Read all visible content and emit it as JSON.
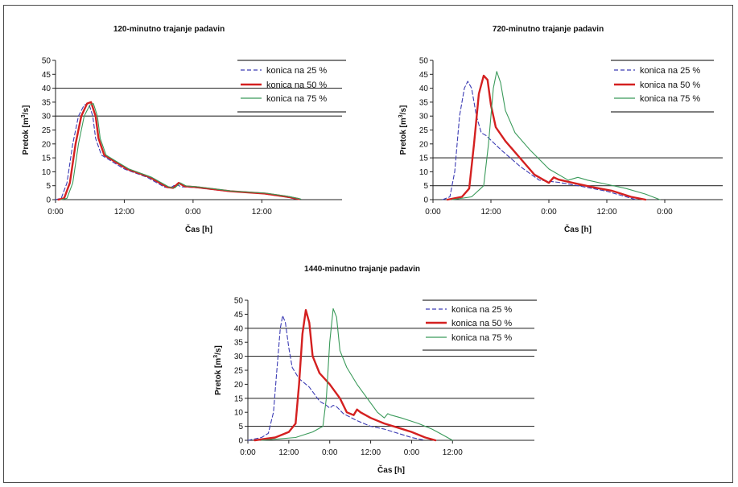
{
  "chart_data": [
    {
      "type": "line",
      "title": "120-minutno trajanje padavin",
      "xlabel": "Čas [h]",
      "ylabel": "Pretok [m³/s]",
      "ylabel_main": "Pretok [m",
      "ylabel_sup": "3",
      "ylabel_end": "/s]",
      "x_unit": "h",
      "xlim": [
        0,
        50
      ],
      "ylim": [
        0,
        50
      ],
      "yticks": [
        0,
        5,
        10,
        15,
        20,
        25,
        30,
        35,
        40,
        45,
        50
      ],
      "xticks": [
        {
          "x": 0,
          "label": "0:00"
        },
        {
          "x": 12,
          "label": "12:00"
        },
        {
          "x": 24,
          "label": "0:00"
        },
        {
          "x": 36,
          "label": "12:00"
        }
      ],
      "gridlines_y": [
        30,
        40
      ],
      "legend": "top-right",
      "series": [
        {
          "name": "konica na 25 %",
          "color": "#3c3cb4",
          "style": "dashed",
          "points": [
            [
              0,
              0
            ],
            [
              1,
              0.5
            ],
            [
              2,
              6
            ],
            [
              3,
              20
            ],
            [
              4,
              30
            ],
            [
              5,
              34
            ],
            [
              5.8,
              34.5
            ],
            [
              6.5,
              30
            ],
            [
              7,
              22
            ],
            [
              8,
              16
            ],
            [
              10,
              13.5
            ],
            [
              12,
              11
            ],
            [
              16,
              8
            ],
            [
              19,
              4.5
            ],
            [
              20,
              4.2
            ],
            [
              21,
              5.5
            ],
            [
              22,
              4.6
            ],
            [
              24,
              4.4
            ],
            [
              30,
              3
            ],
            [
              36,
              2.2
            ],
            [
              40,
              1
            ],
            [
              42,
              0.2
            ]
          ]
        },
        {
          "name": "konica na 50 %",
          "color": "#d42020",
          "style": "solid",
          "points": [
            [
              0.5,
              0
            ],
            [
              1.5,
              0.5
            ],
            [
              2.5,
              6
            ],
            [
              3.5,
              20
            ],
            [
              4.5,
              30
            ],
            [
              5.5,
              34.5
            ],
            [
              6.2,
              35
            ],
            [
              7,
              30
            ],
            [
              7.5,
              22
            ],
            [
              8.5,
              16
            ],
            [
              10.5,
              13.5
            ],
            [
              12.5,
              11
            ],
            [
              16.5,
              8
            ],
            [
              19.5,
              4.5
            ],
            [
              20.5,
              4.2
            ],
            [
              21.5,
              6
            ],
            [
              22.5,
              4.8
            ],
            [
              24.5,
              4.5
            ],
            [
              30.5,
              3
            ],
            [
              36.5,
              2.2
            ],
            [
              40.5,
              1
            ],
            [
              42.5,
              0.2
            ]
          ]
        },
        {
          "name": "konica na 75 %",
          "color": "#3a9a5a",
          "style": "solid",
          "points": [
            [
              1,
              0
            ],
            [
              2,
              0.5
            ],
            [
              3,
              6
            ],
            [
              4,
              20
            ],
            [
              5,
              30
            ],
            [
              6,
              34
            ],
            [
              6.6,
              34.5
            ],
            [
              7.3,
              30
            ],
            [
              7.8,
              22
            ],
            [
              8.8,
              16
            ],
            [
              10.8,
              13.5
            ],
            [
              12.8,
              11
            ],
            [
              16.8,
              8
            ],
            [
              19.8,
              4.5
            ],
            [
              20.8,
              4.2
            ],
            [
              21.8,
              6
            ],
            [
              22.8,
              4.9
            ],
            [
              24.8,
              4.6
            ],
            [
              30.8,
              3.1
            ],
            [
              36.8,
              2.3
            ],
            [
              40.8,
              1.1
            ],
            [
              42.8,
              0.2
            ]
          ]
        }
      ]
    },
    {
      "type": "line",
      "title": "720-minutno trajanje padavin",
      "xlabel": "Čas [h]",
      "ylabel": "Pretok [m³/s]",
      "ylabel_main": "Pretok [m",
      "ylabel_sup": "3",
      "ylabel_end": "/s]",
      "x_unit": "h",
      "xlim": [
        0,
        60
      ],
      "ylim": [
        0,
        50
      ],
      "yticks": [
        0,
        5,
        10,
        15,
        20,
        25,
        30,
        35,
        40,
        45,
        50
      ],
      "xticks": [
        {
          "x": 0,
          "label": "0:00"
        },
        {
          "x": 12,
          "label": "12:00"
        },
        {
          "x": 24,
          "label": "0:00"
        },
        {
          "x": 36,
          "label": "12:00"
        },
        {
          "x": 48,
          "label": "0:00"
        }
      ],
      "gridlines_y": [
        5,
        15
      ],
      "legend": "top-right",
      "series": [
        {
          "name": "konica na 25 %",
          "color": "#3c3cb4",
          "style": "dashed",
          "points": [
            [
              2,
              0
            ],
            [
              3.5,
              1
            ],
            [
              4.5,
              10
            ],
            [
              5.5,
              30
            ],
            [
              6.5,
              40
            ],
            [
              7.2,
              42.5
            ],
            [
              8,
              40
            ],
            [
              9,
              30
            ],
            [
              10,
              24
            ],
            [
              11,
              23
            ],
            [
              14,
              18
            ],
            [
              18,
              12
            ],
            [
              22,
              7
            ],
            [
              26,
              6.2
            ],
            [
              30,
              5
            ],
            [
              36,
              3
            ],
            [
              40,
              1
            ],
            [
              42,
              0
            ]
          ]
        },
        {
          "name": "konica na 50 %",
          "color": "#d42020",
          "style": "solid",
          "points": [
            [
              3,
              0
            ],
            [
              6,
              1
            ],
            [
              7.5,
              4
            ],
            [
              8.5,
              20
            ],
            [
              9.5,
              38
            ],
            [
              10.5,
              44.5
            ],
            [
              11.3,
              43
            ],
            [
              12,
              34
            ],
            [
              13,
              26
            ],
            [
              15,
              21
            ],
            [
              18,
              15
            ],
            [
              21,
              9
            ],
            [
              24,
              6
            ],
            [
              25,
              8
            ],
            [
              26,
              7.2
            ],
            [
              29,
              6
            ],
            [
              33,
              4.5
            ],
            [
              37,
              3.2
            ],
            [
              41,
              1
            ],
            [
              44,
              0
            ]
          ]
        },
        {
          "name": "konica na 75 %",
          "color": "#3a9a5a",
          "style": "solid",
          "points": [
            [
              4,
              0
            ],
            [
              8,
              1
            ],
            [
              10.5,
              5
            ],
            [
              11.5,
              20
            ],
            [
              12.5,
              40
            ],
            [
              13.2,
              46
            ],
            [
              14,
              42
            ],
            [
              15,
              32
            ],
            [
              17,
              24
            ],
            [
              20,
              18
            ],
            [
              24,
              11
            ],
            [
              28,
              7
            ],
            [
              30,
              8
            ],
            [
              32,
              7
            ],
            [
              36,
              5.5
            ],
            [
              40,
              4
            ],
            [
              44,
              2
            ],
            [
              47,
              0
            ]
          ]
        }
      ]
    },
    {
      "type": "line",
      "title": "1440-minutno trajanje padavin",
      "xlabel": "Čas [h]",
      "ylabel": "Pretok [m³/s]",
      "ylabel_main": "Pretok [m",
      "ylabel_sup": "3",
      "ylabel_end": "/s]",
      "x_unit": "h",
      "xlim": [
        0,
        84
      ],
      "ylim": [
        0,
        50
      ],
      "yticks": [
        0,
        5,
        10,
        15,
        20,
        25,
        30,
        35,
        40,
        45,
        50
      ],
      "xticks": [
        {
          "x": 0,
          "label": "0:00"
        },
        {
          "x": 12,
          "label": "12:00"
        },
        {
          "x": 24,
          "label": "0:00"
        },
        {
          "x": 36,
          "label": "12:00"
        },
        {
          "x": 48,
          "label": "0:00"
        },
        {
          "x": 60,
          "label": "12:00"
        }
      ],
      "gridlines_y": [
        5,
        15,
        30,
        40
      ],
      "legend": "top-right",
      "series": [
        {
          "name": "konica na 25 %",
          "color": "#3c3cb4",
          "style": "dashed",
          "points": [
            [
              0,
              0
            ],
            [
              4,
              1
            ],
            [
              6,
              2.5
            ],
            [
              7.5,
              10
            ],
            [
              8.5,
              25
            ],
            [
              9.5,
              40
            ],
            [
              10.2,
              44.5
            ],
            [
              11,
              42
            ],
            [
              12,
              33
            ],
            [
              13,
              26
            ],
            [
              15,
              22
            ],
            [
              18,
              19
            ],
            [
              21,
              14
            ],
            [
              23,
              12.5
            ],
            [
              24,
              11.5
            ],
            [
              25,
              12.5
            ],
            [
              26,
              12
            ],
            [
              28,
              9.5
            ],
            [
              32,
              7
            ],
            [
              36,
              5
            ],
            [
              40,
              4
            ],
            [
              44,
              2.5
            ],
            [
              48,
              1
            ],
            [
              52,
              0
            ]
          ]
        },
        {
          "name": "konica na 50 %",
          "color": "#d42020",
          "style": "solid",
          "points": [
            [
              2,
              0
            ],
            [
              8,
              1
            ],
            [
              12,
              3
            ],
            [
              14,
              6
            ],
            [
              15,
              20
            ],
            [
              16,
              38
            ],
            [
              17,
              46.5
            ],
            [
              18,
              42
            ],
            [
              19,
              30
            ],
            [
              21,
              24
            ],
            [
              24,
              20
            ],
            [
              27,
              15
            ],
            [
              29,
              10
            ],
            [
              31,
              9
            ],
            [
              32,
              11
            ],
            [
              33,
              10
            ],
            [
              36,
              8
            ],
            [
              40,
              6
            ],
            [
              44,
              4.5
            ],
            [
              48,
              3
            ],
            [
              52,
              1
            ],
            [
              55,
              0
            ]
          ]
        },
        {
          "name": "konica na 75 %",
          "color": "#3a9a5a",
          "style": "solid",
          "points": [
            [
              4,
              0
            ],
            [
              14,
              1
            ],
            [
              19,
              3
            ],
            [
              22,
              5
            ],
            [
              23,
              15
            ],
            [
              24,
              35
            ],
            [
              25,
              47
            ],
            [
              26,
              44
            ],
            [
              27,
              32
            ],
            [
              29,
              26
            ],
            [
              32,
              20
            ],
            [
              35,
              15
            ],
            [
              38,
              10
            ],
            [
              40,
              8
            ],
            [
              41,
              9.5
            ],
            [
              42,
              9
            ],
            [
              45,
              8
            ],
            [
              50,
              6
            ],
            [
              54,
              4
            ],
            [
              57,
              2
            ],
            [
              60,
              0
            ]
          ]
        }
      ]
    }
  ]
}
